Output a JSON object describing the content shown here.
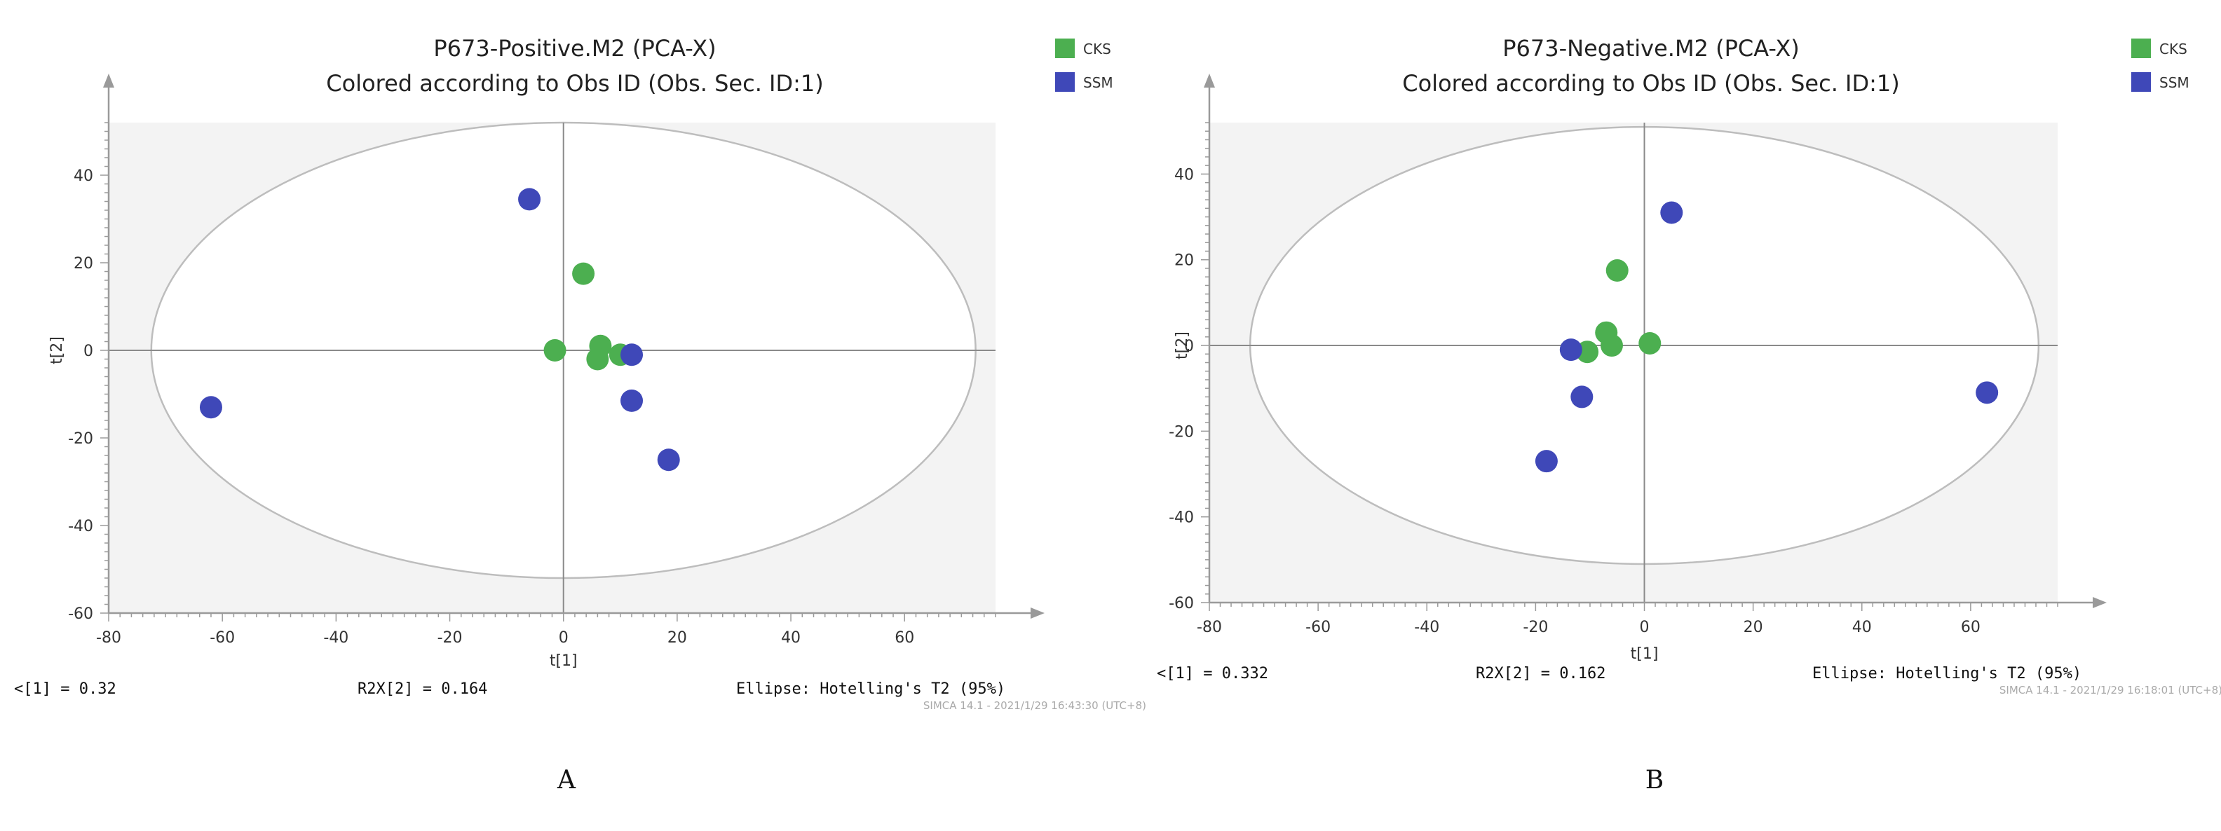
{
  "chart_data": [
    {
      "type": "scatter",
      "panel_label": "A",
      "title": "P673-Positive.M2 (PCA-X)",
      "subtitle": "Colored according to Obs ID (Obs. Sec. ID:1)",
      "xlabel": "t[1]",
      "ylabel": "t[2]",
      "xlim": [
        -80,
        76
      ],
      "ylim": [
        -60,
        52
      ],
      "xticks": [
        -80,
        -60,
        -40,
        -20,
        0,
        20,
        40,
        60
      ],
      "yticks": [
        -60,
        -40,
        -20,
        0,
        20,
        40
      ],
      "ellipse": {
        "rx": 72.5,
        "ry": 52
      },
      "legend": [
        {
          "name": "CKS",
          "color": "#4caf50"
        },
        {
          "name": "SSM",
          "color": "#3f48b8"
        }
      ],
      "series": [
        {
          "name": "CKS",
          "color": "#4caf50",
          "points": [
            [
              3.5,
              17.5
            ],
            [
              -1.5,
              0
            ],
            [
              6.5,
              1
            ],
            [
              6,
              -2
            ],
            [
              10,
              -1
            ]
          ]
        },
        {
          "name": "SSM",
          "color": "#3f48b8",
          "points": [
            [
              -62,
              -13
            ],
            [
              -6,
              34.5
            ],
            [
              12,
              -1
            ],
            [
              12,
              -11.5
            ],
            [
              18.5,
              -25
            ]
          ]
        }
      ],
      "footer": {
        "r2x1": "<[1] = 0.32",
        "r2x2": "R2X[2] = 0.164",
        "ellipse": "Ellipse: Hotelling's T2 (95%)",
        "stamp": "SIMCA 14.1 - 2021/1/29 16:43:30 (UTC+8)"
      }
    },
    {
      "type": "scatter",
      "panel_label": "B",
      "title": "P673-Negative.M2 (PCA-X)",
      "subtitle": "Colored according to Obs ID (Obs. Sec. ID:1)",
      "xlabel": "t[1]",
      "ylabel": "t[2]",
      "xlim": [
        -80,
        76
      ],
      "ylim": [
        -60,
        52
      ],
      "xticks": [
        -80,
        -60,
        -40,
        -20,
        0,
        20,
        40,
        60
      ],
      "yticks": [
        -60,
        -40,
        -20,
        0,
        20,
        40
      ],
      "ellipse": {
        "rx": 72.5,
        "ry": 51
      },
      "legend": [
        {
          "name": "CKS",
          "color": "#4caf50"
        },
        {
          "name": "SSM",
          "color": "#3f48b8"
        }
      ],
      "series": [
        {
          "name": "CKS",
          "color": "#4caf50",
          "points": [
            [
              -5,
              17.5
            ],
            [
              -7,
              3
            ],
            [
              -10.5,
              -1.5
            ],
            [
              -6,
              0
            ],
            [
              1,
              0.5
            ]
          ]
        },
        {
          "name": "SSM",
          "color": "#3f48b8",
          "points": [
            [
              5,
              31
            ],
            [
              -13.5,
              -1
            ],
            [
              -11.5,
              -12
            ],
            [
              -18,
              -27
            ],
            [
              63,
              -11
            ]
          ]
        }
      ],
      "footer": {
        "r2x1": "<[1] = 0.332",
        "r2x2": "R2X[2] = 0.162",
        "ellipse": "Ellipse: Hotelling's T2 (95%)",
        "stamp": "SIMCA 14.1 - 2021/1/29 16:18:01 (UTC+8)"
      }
    }
  ]
}
